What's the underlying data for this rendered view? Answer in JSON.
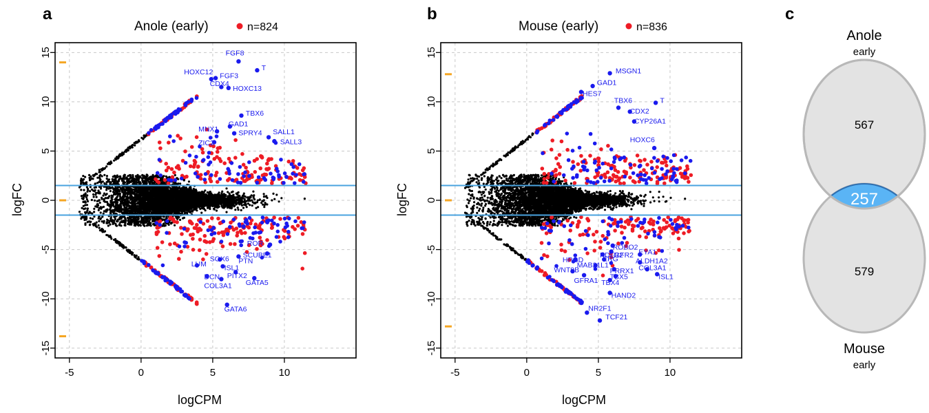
{
  "colors": {
    "background_points": "#000000",
    "highlight": "#ee1c25",
    "gene": "#1a1aee",
    "threshold": "#4aa3df",
    "marker": "#f5a623",
    "venn_fill": "#e3e3e3",
    "venn_stroke": "#b8b8b8",
    "venn_overlap": "#5ab4f5",
    "venn_overlap_stroke": "#2f6fb0"
  },
  "chart_data": [
    {
      "id": "a",
      "type": "scatter",
      "panel_letter": "a",
      "title": "Anole (early)",
      "legend_text": "n=824",
      "xlabel": "logCPM",
      "ylabel": "logFC",
      "xlim": [
        -6,
        15
      ],
      "ylim": [
        -16,
        16
      ],
      "xticks": [
        -5,
        0,
        5,
        10
      ],
      "yticks": [
        -15,
        -10,
        -5,
        0,
        5,
        10,
        15
      ],
      "grid": true,
      "threshold_lines": [
        1.5,
        -1.5
      ],
      "side_markers": [
        14,
        0,
        -13.8
      ],
      "labeled_genes": [
        {
          "name": "FGF8",
          "x": 6.8,
          "y": 14.1,
          "lx": 5.9,
          "ly": 14.7
        },
        {
          "name": "T",
          "x": 8.1,
          "y": 13.2,
          "lx": 8.4,
          "ly": 13.2
        },
        {
          "name": "HOXC12",
          "x": 4.9,
          "y": 12.3,
          "lx": 3.0,
          "ly": 12.8
        },
        {
          "name": "FGF3",
          "x": 5.2,
          "y": 12.4,
          "lx": 5.5,
          "ly": 12.4
        },
        {
          "name": "CDX4",
          "x": 5.6,
          "y": 11.5,
          "lx": 4.8,
          "ly": 11.6
        },
        {
          "name": "HOXC13",
          "x": 6.1,
          "y": 11.4,
          "lx": 6.4,
          "ly": 11.1
        },
        {
          "name": "TBX6",
          "x": 7.0,
          "y": 8.6,
          "lx": 7.3,
          "ly": 8.6
        },
        {
          "name": "MNX1",
          "x": 5.3,
          "y": 7.0,
          "lx": 4.0,
          "ly": 7.0
        },
        {
          "name": "GAD1",
          "x": 6.2,
          "y": 7.5,
          "lx": 6.1,
          "ly": 7.5
        },
        {
          "name": "SPRY4",
          "x": 6.5,
          "y": 6.8,
          "lx": 6.8,
          "ly": 6.6
        },
        {
          "name": "SALL1",
          "x": 8.9,
          "y": 6.4,
          "lx": 9.2,
          "ly": 6.7
        },
        {
          "name": "SALL3",
          "x": 9.3,
          "y": 6.0,
          "lx": 9.7,
          "ly": 5.7
        },
        {
          "name": "ZIC2",
          "x": 5.1,
          "y": 5.9,
          "lx": 4.0,
          "ly": 5.6
        },
        {
          "name": "ROR",
          "x": 9.0,
          "y": -4.5,
          "lx": 7.4,
          "ly": -4.6
        },
        {
          "name": "SCUBE1",
          "x": 8.8,
          "y": -5.4,
          "lx": 7.1,
          "ly": -5.8
        },
        {
          "name": "SOX6",
          "x": 5.5,
          "y": -6.0,
          "lx": 4.8,
          "ly": -6.2
        },
        {
          "name": "PTN",
          "x": 6.8,
          "y": -5.7,
          "lx": 6.8,
          "ly": -6.4
        },
        {
          "name": "LUM",
          "x": 3.9,
          "y": -6.6,
          "lx": 3.5,
          "ly": -6.7
        },
        {
          "name": "ISL1",
          "x": 5.7,
          "y": -6.7,
          "lx": 5.8,
          "ly": -7.1
        },
        {
          "name": "DCN",
          "x": 4.6,
          "y": -7.7,
          "lx": 4.4,
          "ly": -8.0
        },
        {
          "name": "PITX2",
          "x": 6.6,
          "y": -7.3,
          "lx": 6.0,
          "ly": -7.9
        },
        {
          "name": "GATA5",
          "x": 7.9,
          "y": -7.9,
          "lx": 7.3,
          "ly": -8.6
        },
        {
          "name": "COL3A1",
          "x": 5.6,
          "y": -8.0,
          "lx": 4.4,
          "ly": -8.9
        },
        {
          "name": "GATA6",
          "x": 6.0,
          "y": -10.6,
          "lx": 5.8,
          "ly": -11.3
        }
      ]
    },
    {
      "id": "b",
      "type": "scatter",
      "panel_letter": "b",
      "title": "Mouse (early)",
      "legend_text": "n=836",
      "xlabel": "logCPM",
      "ylabel": "logFC",
      "xlim": [
        -6,
        15
      ],
      "ylim": [
        -16,
        16
      ],
      "xticks": [
        -5,
        0,
        5,
        10
      ],
      "yticks": [
        -15,
        -10,
        -5,
        0,
        5,
        10,
        15
      ],
      "grid": true,
      "threshold_lines": [
        1.5,
        -1.5
      ],
      "side_markers": [
        12.8,
        0,
        -12.8
      ],
      "labeled_genes": [
        {
          "name": "MSGN1",
          "x": 5.8,
          "y": 12.9,
          "lx": 6.2,
          "ly": 12.9
        },
        {
          "name": "GAD1",
          "x": 4.6,
          "y": 11.6,
          "lx": 4.9,
          "ly": 11.7
        },
        {
          "name": "HES7",
          "x": 3.8,
          "y": 11.0,
          "lx": 3.9,
          "ly": 10.6
        },
        {
          "name": "TBX6",
          "x": 6.4,
          "y": 9.4,
          "lx": 6.1,
          "ly": 9.9
        },
        {
          "name": "T",
          "x": 9.0,
          "y": 9.9,
          "lx": 9.3,
          "ly": 9.9
        },
        {
          "name": "CDX2",
          "x": 7.2,
          "y": 9.0,
          "lx": 7.2,
          "ly": 8.8
        },
        {
          "name": "CYP26A1",
          "x": 7.5,
          "y": 8.0,
          "lx": 7.5,
          "ly": 7.8
        },
        {
          "name": "HOXC6",
          "x": 8.9,
          "y": 5.3,
          "lx": 7.2,
          "ly": 5.9
        },
        {
          "name": "ROBO2",
          "x": 6.0,
          "y": -4.6,
          "lx": 6.0,
          "ly": -5.0
        },
        {
          "name": "EYA1",
          "x": 7.9,
          "y": -5.5,
          "lx": 7.8,
          "ly": -5.5
        },
        {
          "name": "FGFR2",
          "x": 5.9,
          "y": -5.2,
          "lx": 5.8,
          "ly": -5.8
        },
        {
          "name": "PDLR2",
          "x": 5.3,
          "y": -5.5,
          "lx": 5.1,
          "ly": -5.8
        },
        {
          "name": "HPGD",
          "x": 3.4,
          "y": -6.0,
          "lx": 2.5,
          "ly": -6.3
        },
        {
          "name": "ALDH1A2",
          "x": 7.9,
          "y": -6.3,
          "lx": 7.6,
          "ly": -6.4
        },
        {
          "name": "MAB21L1",
          "x": 4.8,
          "y": -6.6,
          "lx": 3.5,
          "ly": -6.8
        },
        {
          "name": "ERG",
          "x": 5.4,
          "y": -6.0,
          "lx": 5.3,
          "ly": -6.2
        },
        {
          "name": "COL3A1",
          "x": 8.4,
          "y": -7.0,
          "lx": 7.8,
          "ly": -7.1
        },
        {
          "name": "WNT9B",
          "x": 3.2,
          "y": -7.2,
          "lx": 1.9,
          "ly": -7.3
        },
        {
          "name": "PRRX1",
          "x": 6.1,
          "y": -7.0,
          "lx": 5.8,
          "ly": -7.4
        },
        {
          "name": "ISL1",
          "x": 9.1,
          "y": -7.5,
          "lx": 9.2,
          "ly": -8.0
        },
        {
          "name": "TBX5",
          "x": 6.2,
          "y": -7.7,
          "lx": 5.8,
          "ly": -8.0
        },
        {
          "name": "GFRA1",
          "x": 4.0,
          "y": -7.6,
          "lx": 3.3,
          "ly": -8.4
        },
        {
          "name": "TBX4",
          "x": 5.8,
          "y": -8.1,
          "lx": 5.2,
          "ly": -8.6
        },
        {
          "name": "HAND2",
          "x": 5.8,
          "y": -9.4,
          "lx": 5.9,
          "ly": -9.9
        },
        {
          "name": "NR2F1",
          "x": 4.2,
          "y": -11.4,
          "lx": 4.3,
          "ly": -11.2
        },
        {
          "name": "TCF21",
          "x": 5.1,
          "y": -12.2,
          "lx": 5.5,
          "ly": -12.1
        }
      ]
    },
    {
      "id": "c",
      "type": "venn",
      "panel_letter": "c",
      "sets": [
        {
          "name": "Anole",
          "sub": "early",
          "only": "567"
        },
        {
          "name": "Mouse",
          "sub": "early",
          "only": "579"
        }
      ],
      "overlap": "257"
    }
  ]
}
